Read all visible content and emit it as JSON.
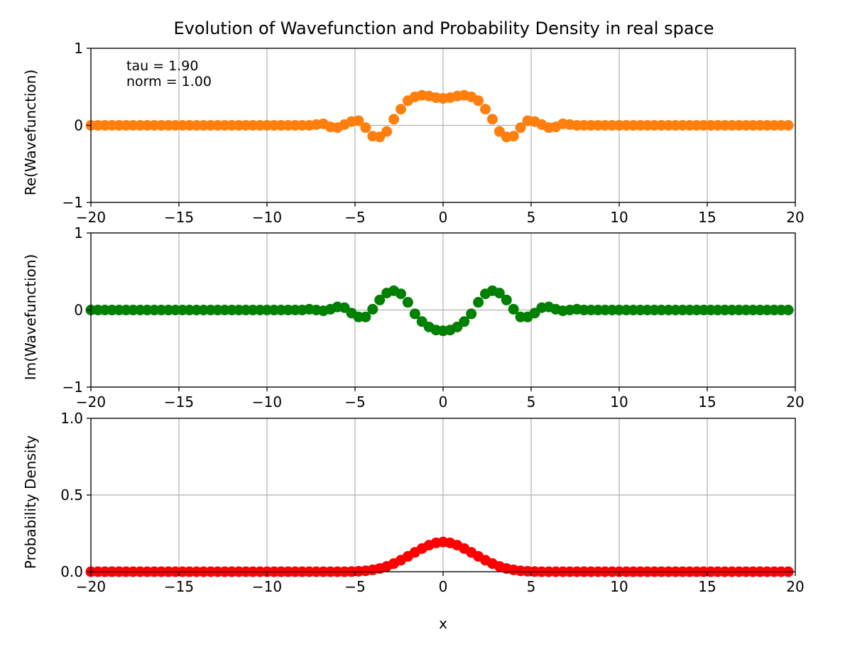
{
  "figure_title": "Evolution of Wavefunction and Probability Density in real space",
  "annotations": [
    "tau = 1.90",
    "norm = 1.00"
  ],
  "chart_data": [
    {
      "type": "scatter",
      "ylabel": "Re(Wavefunction)",
      "xlabel": "",
      "xlim": [
        -20,
        20
      ],
      "ylim": [
        -1,
        1
      ],
      "xticks": [
        "−20",
        "−15",
        "−10",
        "−5",
        "0",
        "5",
        "10",
        "15",
        "20"
      ],
      "yticks": [
        "−1",
        "0",
        "1"
      ],
      "grid": true,
      "color": "#ff7f0e",
      "x": [
        -20,
        -19.6,
        -19.2,
        -18.8,
        -18.4,
        -18,
        -17.6,
        -17.2,
        -16.8,
        -16.4,
        -16,
        -15.6,
        -15.2,
        -14.8,
        -14.4,
        -14,
        -13.6,
        -13.2,
        -12.8,
        -12.4,
        -12,
        -11.6,
        -11.2,
        -10.8,
        -10.4,
        -10,
        -9.6,
        -9.2,
        -8.8,
        -8.4,
        -8,
        -7.6,
        -7.2,
        -6.8,
        -6.4,
        -6,
        -5.6,
        -5.2,
        -4.8,
        -4.4,
        -4,
        -3.6,
        -3.2,
        -2.8,
        -2.4,
        -2,
        -1.6,
        -1.2,
        -0.8,
        -0.4,
        0,
        0.4,
        0.8,
        1.2,
        1.6,
        2,
        2.4,
        2.8,
        3.2,
        3.6,
        4,
        4.4,
        4.8,
        5.2,
        5.6,
        6,
        6.4,
        6.8,
        7.2,
        7.6,
        8,
        8.4,
        8.8,
        9.2,
        9.6,
        10,
        10.4,
        10.8,
        11.2,
        11.6,
        12,
        12.4,
        12.8,
        13.2,
        13.6,
        14,
        14.4,
        14.8,
        15.2,
        15.6,
        16,
        16.4,
        16.8,
        17.2,
        17.6,
        18,
        18.4,
        18.8,
        19.2,
        19.6
      ],
      "y": [
        0,
        0,
        0,
        0,
        0,
        0,
        0,
        0,
        0,
        0,
        0,
        0,
        0,
        0,
        0,
        0,
        0,
        0,
        0,
        0,
        0,
        0,
        0,
        0,
        0,
        0,
        0,
        0,
        0,
        0,
        0,
        0,
        0.01,
        0.02,
        -0.02,
        -0.03,
        0.01,
        0.05,
        0.06,
        -0.03,
        -0.14,
        -0.15,
        -0.08,
        0.08,
        0.21,
        0.32,
        0.37,
        0.39,
        0.38,
        0.36,
        0.35,
        0.36,
        0.38,
        0.39,
        0.37,
        0.32,
        0.21,
        0.08,
        -0.08,
        -0.15,
        -0.14,
        -0.03,
        0.06,
        0.05,
        0.01,
        -0.03,
        -0.02,
        0.02,
        0.01,
        0,
        0,
        0,
        0,
        0,
        0,
        0,
        0,
        0,
        0,
        0,
        0,
        0,
        0,
        0,
        0,
        0,
        0,
        0,
        0,
        0,
        0,
        0,
        0,
        0,
        0,
        0,
        0,
        0,
        0,
        0
      ]
    },
    {
      "type": "scatter",
      "ylabel": "Im(Wavefunction)",
      "xlabel": "",
      "xlim": [
        -20,
        20
      ],
      "ylim": [
        -1,
        1
      ],
      "xticks": [
        "−20",
        "−15",
        "−10",
        "−5",
        "0",
        "5",
        "10",
        "15",
        "20"
      ],
      "yticks": [
        "−1",
        "0",
        "1"
      ],
      "grid": true,
      "color": "#008000",
      "x": [
        -20,
        -19.6,
        -19.2,
        -18.8,
        -18.4,
        -18,
        -17.6,
        -17.2,
        -16.8,
        -16.4,
        -16,
        -15.6,
        -15.2,
        -14.8,
        -14.4,
        -14,
        -13.6,
        -13.2,
        -12.8,
        -12.4,
        -12,
        -11.6,
        -11.2,
        -10.8,
        -10.4,
        -10,
        -9.6,
        -9.2,
        -8.8,
        -8.4,
        -8,
        -7.6,
        -7.2,
        -6.8,
        -6.4,
        -6,
        -5.6,
        -5.2,
        -4.8,
        -4.4,
        -4,
        -3.6,
        -3.2,
        -2.8,
        -2.4,
        -2,
        -1.6,
        -1.2,
        -0.8,
        -0.4,
        0,
        0.4,
        0.8,
        1.2,
        1.6,
        2,
        2.4,
        2.8,
        3.2,
        3.6,
        4,
        4.4,
        4.8,
        5.2,
        5.6,
        6,
        6.4,
        6.8,
        7.2,
        7.6,
        8,
        8.4,
        8.8,
        9.2,
        9.6,
        10,
        10.4,
        10.8,
        11.2,
        11.6,
        12,
        12.4,
        12.8,
        13.2,
        13.6,
        14,
        14.4,
        14.8,
        15.2,
        15.6,
        16,
        16.4,
        16.8,
        17.2,
        17.6,
        18,
        18.4,
        18.8,
        19.2,
        19.6
      ],
      "y": [
        0,
        0,
        0,
        0,
        0,
        0,
        0,
        0,
        0,
        0,
        0,
        0,
        0,
        0,
        0,
        0,
        0,
        0,
        0,
        0,
        0,
        0,
        0,
        0,
        0,
        0,
        0,
        0,
        0,
        0,
        0,
        0.01,
        0,
        -0.01,
        0.01,
        0.04,
        0.03,
        -0.04,
        -0.09,
        -0.09,
        0.01,
        0.13,
        0.22,
        0.25,
        0.21,
        0.1,
        -0.05,
        -0.15,
        -0.22,
        -0.26,
        -0.27,
        -0.26,
        -0.22,
        -0.15,
        -0.05,
        0.1,
        0.21,
        0.25,
        0.22,
        0.13,
        0.01,
        -0.09,
        -0.09,
        -0.04,
        0.03,
        0.04,
        0.01,
        -0.01,
        0,
        0.01,
        0,
        0,
        0,
        0,
        0,
        0,
        0,
        0,
        0,
        0,
        0,
        0,
        0,
        0,
        0,
        0,
        0,
        0,
        0,
        0,
        0,
        0,
        0,
        0,
        0,
        0,
        0,
        0,
        0,
        0
      ]
    },
    {
      "type": "scatter",
      "ylabel": "Probability Density",
      "xlabel": "x",
      "xlim": [
        -20,
        20
      ],
      "ylim": [
        0,
        1
      ],
      "xticks": [
        "−20",
        "−15",
        "−10",
        "−5",
        "0",
        "5",
        "10",
        "15",
        "20"
      ],
      "yticks": [
        "0.0",
        "0.5",
        "1.0"
      ],
      "grid": true,
      "color": "#ff0000",
      "x": [
        -20,
        -19.6,
        -19.2,
        -18.8,
        -18.4,
        -18,
        -17.6,
        -17.2,
        -16.8,
        -16.4,
        -16,
        -15.6,
        -15.2,
        -14.8,
        -14.4,
        -14,
        -13.6,
        -13.2,
        -12.8,
        -12.4,
        -12,
        -11.6,
        -11.2,
        -10.8,
        -10.4,
        -10,
        -9.6,
        -9.2,
        -8.8,
        -8.4,
        -8,
        -7.6,
        -7.2,
        -6.8,
        -6.4,
        -6,
        -5.6,
        -5.2,
        -4.8,
        -4.4,
        -4,
        -3.6,
        -3.2,
        -2.8,
        -2.4,
        -2,
        -1.6,
        -1.2,
        -0.8,
        -0.4,
        0,
        0.4,
        0.8,
        1.2,
        1.6,
        2,
        2.4,
        2.8,
        3.2,
        3.6,
        4,
        4.4,
        4.8,
        5.2,
        5.6,
        6,
        6.4,
        6.8,
        7.2,
        7.6,
        8,
        8.4,
        8.8,
        9.2,
        9.6,
        10,
        10.4,
        10.8,
        11.2,
        11.6,
        12,
        12.4,
        12.8,
        13.2,
        13.6,
        14,
        14.4,
        14.8,
        15.2,
        15.6,
        16,
        16.4,
        16.8,
        17.2,
        17.6,
        18,
        18.4,
        18.8,
        19.2,
        19.6
      ],
      "y": [
        0,
        0,
        0,
        0,
        0,
        0,
        0,
        0,
        0,
        0,
        0,
        0,
        0,
        0,
        0,
        0,
        0,
        0,
        0,
        0,
        0,
        0,
        0,
        0,
        0,
        0,
        0,
        0,
        0,
        0,
        0,
        0,
        0,
        0,
        0,
        0,
        0,
        0.001,
        0.003,
        0.006,
        0.012,
        0.021,
        0.035,
        0.053,
        0.075,
        0.1,
        0.126,
        0.151,
        0.173,
        0.188,
        0.194,
        0.188,
        0.173,
        0.151,
        0.126,
        0.1,
        0.075,
        0.053,
        0.035,
        0.021,
        0.012,
        0.006,
        0.003,
        0.001,
        0,
        0,
        0,
        0,
        0,
        0,
        0,
        0,
        0,
        0,
        0,
        0,
        0,
        0,
        0,
        0,
        0,
        0,
        0,
        0,
        0,
        0,
        0,
        0,
        0,
        0,
        0,
        0,
        0,
        0,
        0,
        0,
        0,
        0,
        0,
        0
      ]
    }
  ]
}
